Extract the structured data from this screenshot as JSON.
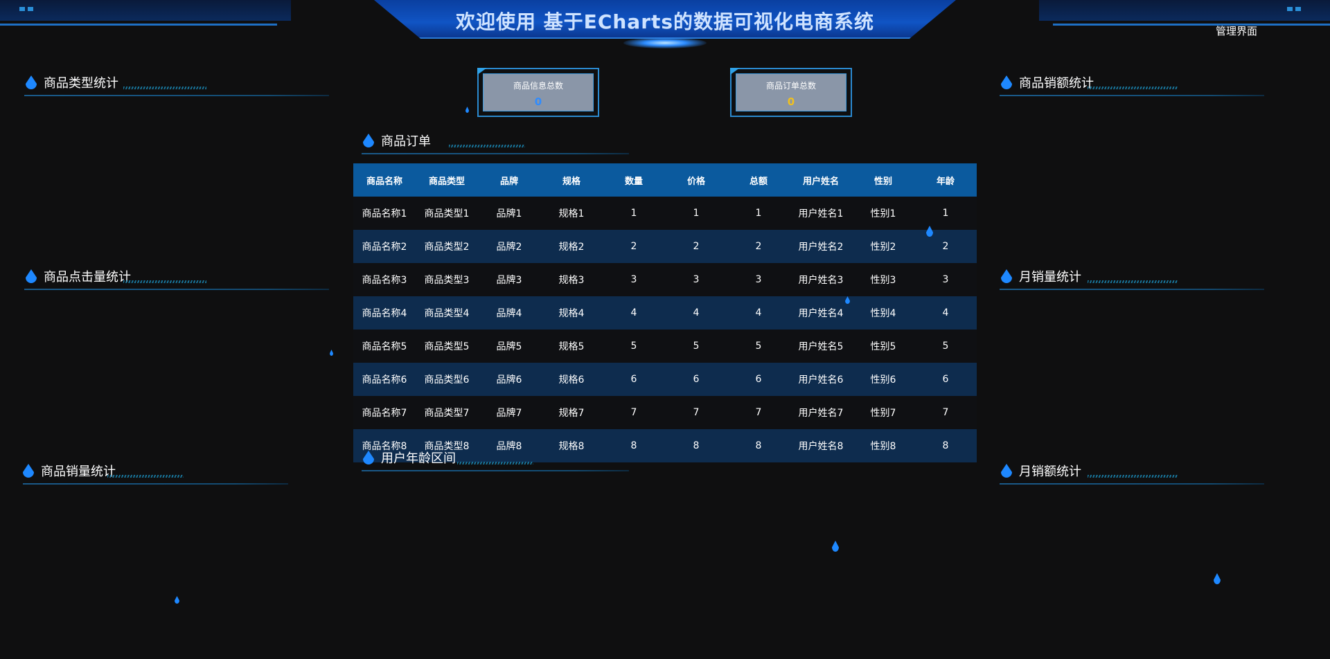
{
  "header": {
    "title": "欢迎使用 基于ECharts的数据可视化电商系统",
    "admin_link": "管理界面"
  },
  "panels": {
    "left": [
      "商品类型统计",
      "商品点击量统计",
      "商品销量统计"
    ],
    "right": [
      "商品销额统计",
      "月销量统计",
      "月销额统计"
    ],
    "center_orders": "商品订单",
    "center_age": "用户年龄区间"
  },
  "stats": [
    {
      "label": "商品信息总数",
      "value": "0",
      "color": "#2f8cff"
    },
    {
      "label": "商品订单总数",
      "value": "0",
      "color": "#f0c020"
    }
  ],
  "table": {
    "columns": [
      "商品名称",
      "商品类型",
      "品牌",
      "规格",
      "数量",
      "价格",
      "总额",
      "用户姓名",
      "性别",
      "年龄"
    ],
    "rows": [
      [
        "商品名称1",
        "商品类型1",
        "品牌1",
        "规格1",
        "1",
        "1",
        "1",
        "用户姓名1",
        "性别1",
        "1"
      ],
      [
        "商品名称2",
        "商品类型2",
        "品牌2",
        "规格2",
        "2",
        "2",
        "2",
        "用户姓名2",
        "性别2",
        "2"
      ],
      [
        "商品名称3",
        "商品类型3",
        "品牌3",
        "规格3",
        "3",
        "3",
        "3",
        "用户姓名3",
        "性别3",
        "3"
      ],
      [
        "商品名称4",
        "商品类型4",
        "品牌4",
        "规格4",
        "4",
        "4",
        "4",
        "用户姓名4",
        "性别4",
        "4"
      ],
      [
        "商品名称5",
        "商品类型5",
        "品牌5",
        "规格5",
        "5",
        "5",
        "5",
        "用户姓名5",
        "性别5",
        "5"
      ],
      [
        "商品名称6",
        "商品类型6",
        "品牌6",
        "规格6",
        "6",
        "6",
        "6",
        "用户姓名6",
        "性别6",
        "6"
      ],
      [
        "商品名称7",
        "商品类型7",
        "品牌7",
        "规格7",
        "7",
        "7",
        "7",
        "用户姓名7",
        "性别7",
        "7"
      ],
      [
        "商品名称8",
        "商品类型8",
        "品牌8",
        "规格8",
        "8",
        "8",
        "8",
        "用户姓名8",
        "性别8",
        "8"
      ]
    ]
  },
  "colors": {
    "background": "#0f0f10",
    "header_blue": "#0b5a9e",
    "row_alt": "#0e2c4e",
    "accent": "#1e88ff"
  }
}
